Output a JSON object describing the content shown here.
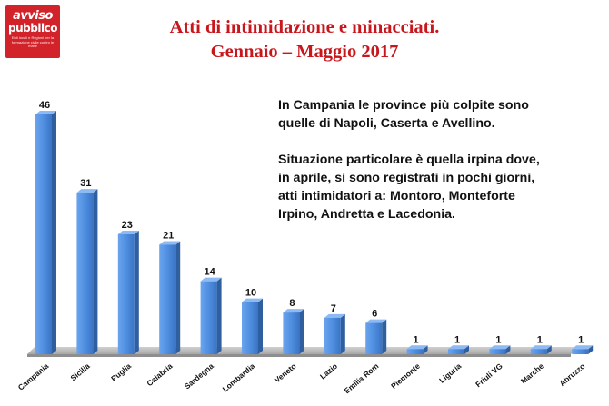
{
  "logo": {
    "line1": "avviso",
    "line2": "pubblico",
    "tagline": "Enti locali e Regioni per la formazione civile contro le mafie"
  },
  "title": {
    "line1": "Atti di intimidazione e minacciati.",
    "line2": "Gennaio – Maggio 2017"
  },
  "notes": {
    "paragraph1": [
      "In Campania le province più colpite sono",
      "quelle di Napoli, Caserta e Avellino."
    ],
    "paragraph2": [
      "Situazione particolare è quella irpina dove,",
      "in aprile, si sono registrati in pochi giorni,",
      "atti intimidatori a: Montoro, Monteforte",
      "Irpino, Andretta e Lacedonia."
    ]
  },
  "chart_data": {
    "type": "bar",
    "title": "",
    "xlabel": "",
    "ylabel": "",
    "categories": [
      "Campania",
      "Sicilia",
      "Puglia",
      "Calabria",
      "Sardegna",
      "Lombardia",
      "Veneto",
      "Lazio",
      "Emilia Rom",
      "Piemonte",
      "Liguria",
      "Friuli VG",
      "Marche",
      "Abruzzo"
    ],
    "values": [
      46,
      31,
      23,
      21,
      14,
      10,
      8,
      7,
      6,
      1,
      1,
      1,
      1,
      1
    ],
    "ylim": [
      0,
      46
    ],
    "grid": false,
    "legend": "none",
    "data_labels": true,
    "bar_color": "#4f8ee0"
  }
}
